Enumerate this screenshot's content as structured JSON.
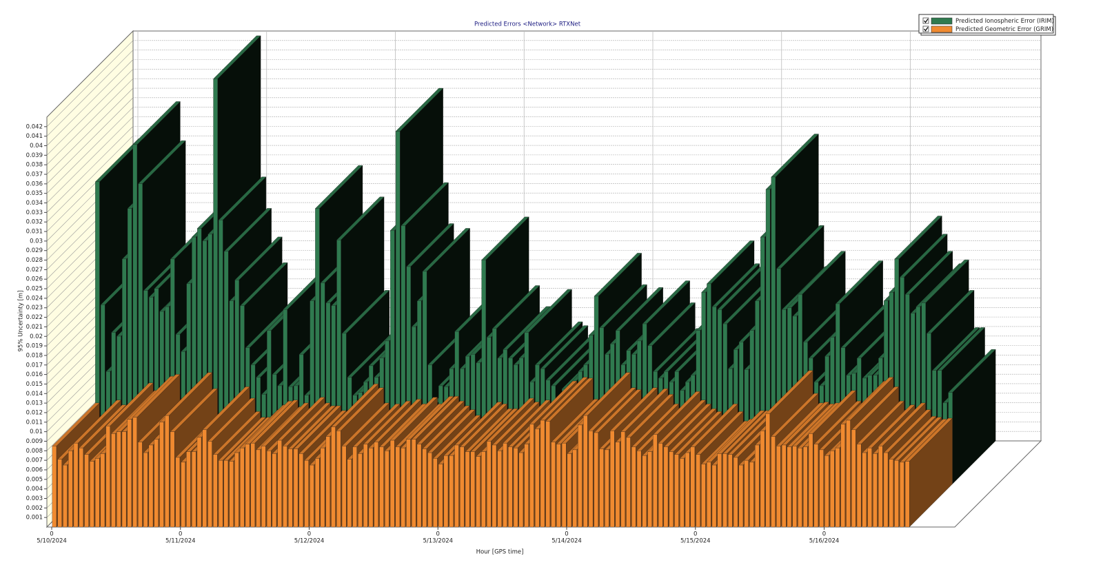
{
  "chart_data": {
    "type": "bar",
    "title": "Predicted Errors <Network> RTXNet",
    "xlabel": "Hour [GPS time]",
    "ylabel": "95% Uncertainty [m]",
    "x": [
      0,
      1,
      2,
      3,
      4,
      5,
      6,
      7,
      8,
      9,
      10,
      11,
      12,
      13,
      14,
      15,
      16,
      17,
      18,
      19,
      20,
      21,
      22,
      23,
      24,
      25,
      26,
      27,
      28,
      29,
      30,
      31,
      32,
      33,
      34,
      35,
      36,
      37,
      38,
      39,
      40,
      41,
      42,
      43,
      44,
      45,
      46,
      47,
      48,
      49,
      50,
      51,
      52,
      53,
      54,
      55,
      56,
      57,
      58,
      59,
      60,
      61,
      62,
      63,
      64,
      65,
      66,
      67,
      68,
      69,
      70,
      71,
      72,
      73,
      74,
      75,
      76,
      77,
      78,
      79,
      80,
      81,
      82,
      83,
      84,
      85,
      86,
      87,
      88,
      89,
      90,
      91,
      92,
      93,
      94,
      95,
      96,
      97,
      98,
      99,
      100,
      101,
      102,
      103,
      104,
      105,
      106,
      107,
      108,
      109,
      110,
      111,
      112,
      113,
      114,
      115,
      116,
      117,
      118,
      119,
      120,
      121,
      122,
      123,
      124,
      125,
      126,
      127,
      128,
      129,
      130,
      131,
      132,
      133,
      134,
      135,
      136,
      137,
      138,
      139,
      140,
      141,
      142,
      143,
      144,
      145,
      146,
      147,
      148,
      149,
      150,
      151,
      152,
      153,
      154,
      155,
      156,
      157,
      158,
      159
    ],
    "xlim": [
      0,
      160
    ],
    "xticks": [
      {
        "value": 0,
        "label": "0"
      },
      {
        "value": 24,
        "label": "0"
      },
      {
        "value": 48,
        "label": "0"
      },
      {
        "value": 72,
        "label": "0"
      },
      {
        "value": 96,
        "label": "0"
      },
      {
        "value": 120,
        "label": "0"
      },
      {
        "value": 144,
        "label": "0"
      }
    ],
    "xtick_dates": [
      "5/10/2024",
      "5/11/2024",
      "5/12/2024",
      "5/13/2024",
      "5/14/2024",
      "5/15/2024",
      "5/16/2024"
    ],
    "ylim": [
      0,
      0.043
    ],
    "yticks": [
      0.001,
      0.002,
      0.003,
      0.004,
      0.005,
      0.006,
      0.007,
      0.008,
      0.009,
      0.01,
      0.011,
      0.012,
      0.013,
      0.014,
      0.015,
      0.016,
      0.017,
      0.018,
      0.019,
      0.02,
      0.021,
      0.022,
      0.023,
      0.024,
      0.025,
      0.026,
      0.027,
      0.028,
      0.029,
      0.03,
      0.031,
      0.032,
      0.033,
      0.034,
      0.035,
      0.036,
      0.037,
      0.038,
      0.039,
      0.04,
      0.041,
      0.042
    ],
    "grid": true,
    "legend": "upper right",
    "series": [
      {
        "name": "Predicted Ionospheric Error (IRIM)",
        "color": "#2f7a4f",
        "values": [
          0.0317,
          0.0188,
          0.0118,
          0.0159,
          0.0155,
          0.0236,
          0.0289,
          0.0356,
          0.0315,
          0.0203,
          0.0196,
          0.0205,
          0.0181,
          0.0186,
          0.0236,
          0.0157,
          0.0139,
          0.021,
          0.0259,
          0.0268,
          0.0255,
          0.0262,
          0.0425,
          0.0277,
          0.0244,
          0.0192,
          0.0214,
          0.0187,
          0.0143,
          0.0125,
          0.0112,
          0.0094,
          0.0161,
          0.0115,
          0.0103,
          0.0183,
          0.0102,
          0.0103,
          0.0136,
          0.0093,
          0.0192,
          0.0289,
          0.0211,
          0.019,
          0.0187,
          0.0256,
          0.0158,
          0.0112,
          0.0093,
          0.0096,
          0.0107,
          0.0124,
          0.0112,
          0.0132,
          0.015,
          0.0266,
          0.037,
          0.0271,
          0.0228,
          0.0165,
          0.0192,
          0.0223,
          0.0125,
          0.0085,
          0.0103,
          0.0102,
          0.0121,
          0.016,
          0.0121,
          0.0134,
          0.0136,
          0.0127,
          0.0235,
          0.0154,
          0.0163,
          0.0132,
          0.0141,
          0.0132,
          0.0125,
          0.0132,
          0.0159,
          0.0107,
          0.0125,
          0.0121,
          0.0109,
          0.0103,
          0.0088,
          0.01,
          0.0103,
          0.01,
          0.0118,
          0.0125,
          0.0156,
          0.0197,
          0.0164,
          0.0136,
          0.0147,
          0.0161,
          0.0125,
          0.014,
          0.0136,
          0.015,
          0.0168,
          0.0145,
          0.0118,
          0.0111,
          0.0118,
          0.0107,
          0.0118,
          0.0098,
          0.0107,
          0.0114,
          0.0161,
          0.0201,
          0.021,
          0.0186,
          0.0183,
          0.0168,
          0.0121,
          0.0141,
          0.0149,
          0.012,
          0.0161,
          0.0192,
          0.0259,
          0.0309,
          0.0322,
          0.0226,
          0.0183,
          0.0185,
          0.0176,
          0.0199,
          0.0149,
          0.0132,
          0.0107,
          0.0103,
          0.0134,
          0.0154,
          0.0189,
          0.0143,
          0.0114,
          0.0116,
          0.0132,
          0.0111,
          0.0114,
          0.0114,
          0.0132,
          0.0192,
          0.0201,
          0.0236,
          0.0217,
          0.0199,
          0.0179,
          0.0186,
          0.019,
          0.0158,
          0.0119,
          0.0119,
          0.0085,
          0.0096
        ]
      },
      {
        "name": "Predicted Geometric Error (GRIM)",
        "color": "#f08a30",
        "values": [
          0.0085,
          0.0071,
          0.0065,
          0.008,
          0.0088,
          0.0083,
          0.0076,
          0.0069,
          0.0072,
          0.0077,
          0.0106,
          0.0098,
          0.01,
          0.01,
          0.0113,
          0.0115,
          0.0089,
          0.0078,
          0.0086,
          0.0092,
          0.011,
          0.0117,
          0.01,
          0.0073,
          0.0068,
          0.0079,
          0.0079,
          0.0094,
          0.0102,
          0.009,
          0.0076,
          0.007,
          0.007,
          0.0069,
          0.0078,
          0.0083,
          0.0087,
          0.0088,
          0.0081,
          0.0085,
          0.008,
          0.0077,
          0.0091,
          0.0085,
          0.0082,
          0.0082,
          0.0077,
          0.007,
          0.0065,
          0.0072,
          0.0083,
          0.0095,
          0.0105,
          0.0101,
          0.0085,
          0.0071,
          0.0084,
          0.0077,
          0.0087,
          0.0083,
          0.0089,
          0.0084,
          0.008,
          0.0091,
          0.0084,
          0.0083,
          0.0092,
          0.0092,
          0.0087,
          0.0082,
          0.0078,
          0.0072,
          0.0066,
          0.0075,
          0.0075,
          0.0086,
          0.0084,
          0.0079,
          0.0079,
          0.0074,
          0.0079,
          0.009,
          0.0086,
          0.008,
          0.0088,
          0.0084,
          0.0083,
          0.0078,
          0.0087,
          0.0108,
          0.0103,
          0.0112,
          0.0111,
          0.0089,
          0.0087,
          0.0088,
          0.0077,
          0.0081,
          0.0107,
          0.0117,
          0.0101,
          0.0099,
          0.0082,
          0.0081,
          0.0101,
          0.0089,
          0.01,
          0.0094,
          0.0084,
          0.008,
          0.0075,
          0.0079,
          0.0097,
          0.0088,
          0.0084,
          0.0079,
          0.0076,
          0.0072,
          0.0078,
          0.0084,
          0.0076,
          0.0066,
          0.0068,
          0.0065,
          0.0077,
          0.0077,
          0.0076,
          0.0073,
          0.0065,
          0.007,
          0.0068,
          0.0086,
          0.0101,
          0.0119,
          0.0095,
          0.0085,
          0.0086,
          0.0084,
          0.0085,
          0.0083,
          0.0084,
          0.0098,
          0.0087,
          0.0081,
          0.0075,
          0.008,
          0.0083,
          0.0108,
          0.0112,
          0.0102,
          0.0087,
          0.0078,
          0.0083,
          0.0077,
          0.0085,
          0.0078,
          0.0071,
          0.007,
          0.0068,
          0.0069
        ]
      }
    ]
  }
}
